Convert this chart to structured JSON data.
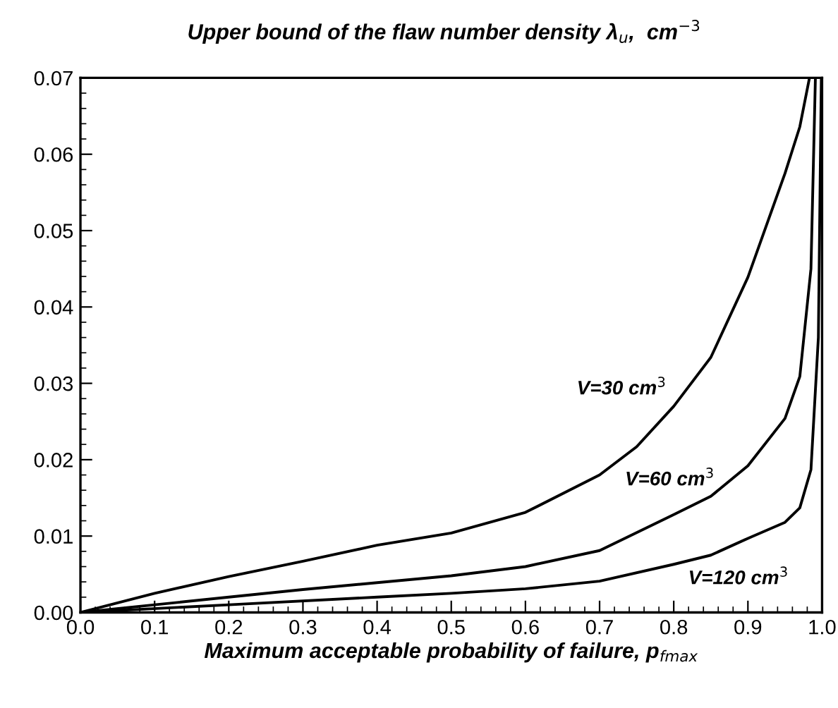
{
  "chart_data": {
    "type": "line",
    "title": "Upper bound of the flaw number density λ$_{u}$,  cm$^{−3}$",
    "xlabel": "Maximum acceptable probability of failure, p$_{fmax}$",
    "xlim": [
      0.0,
      1.0
    ],
    "ylim": [
      0.0,
      0.07
    ],
    "xticks": [
      {
        "value": 0,
        "label": "0.0"
      },
      0.1,
      0.2,
      0.3,
      0.4,
      0.5,
      0.6,
      0.7,
      0.8,
      0.9,
      {
        "value": 1,
        "label": "1.0"
      }
    ],
    "yticks": [
      {
        "value": 0,
        "label": "0.00"
      },
      0.01,
      0.02,
      0.03,
      0.04,
      0.05,
      0.06,
      0.07
    ],
    "grid": false,
    "legend": false,
    "marker": "none",
    "line_style": "solid",
    "series": [
      {
        "color": "#000000",
        "x": [
          0.0,
          0.1,
          0.2,
          0.3,
          0.4,
          0.5,
          0.6,
          0.7,
          0.75,
          0.8,
          0.85,
          0.9,
          0.95,
          0.97,
          0.983
        ],
        "values": [
          0.0,
          0.0025,
          0.0047,
          0.0067,
          0.0088,
          0.0104,
          0.0131,
          0.018,
          0.0217,
          0.027,
          0.0334,
          0.0439,
          0.0575,
          0.0636,
          0.07
        ]
      },
      {
        "color": "#000000",
        "x": [
          0.0,
          0.1,
          0.2,
          0.3,
          0.4,
          0.5,
          0.6,
          0.7,
          0.8,
          0.85,
          0.9,
          0.95,
          0.97,
          0.985,
          0.991
        ],
        "values": [
          0.0,
          0.001,
          0.002,
          0.003,
          0.0039,
          0.0048,
          0.006,
          0.0081,
          0.0128,
          0.0152,
          0.0192,
          0.0254,
          0.0309,
          0.045,
          0.07
        ]
      },
      {
        "color": "#000000",
        "x": [
          0.0,
          0.2,
          0.4,
          0.5,
          0.6,
          0.7,
          0.8,
          0.85,
          0.9,
          0.95,
          0.97,
          0.985,
          0.995,
          0.999
        ],
        "values": [
          0.0,
          0.001,
          0.002,
          0.0025,
          0.0031,
          0.0041,
          0.0063,
          0.0075,
          0.0097,
          0.0118,
          0.0137,
          0.0187,
          0.036,
          0.07
        ]
      }
    ],
    "annotations": [
      "V=30 cm$^{3}$",
      "V=60 cm$^{3}$",
      "V=120 cm$^{3}$"
    ]
  }
}
